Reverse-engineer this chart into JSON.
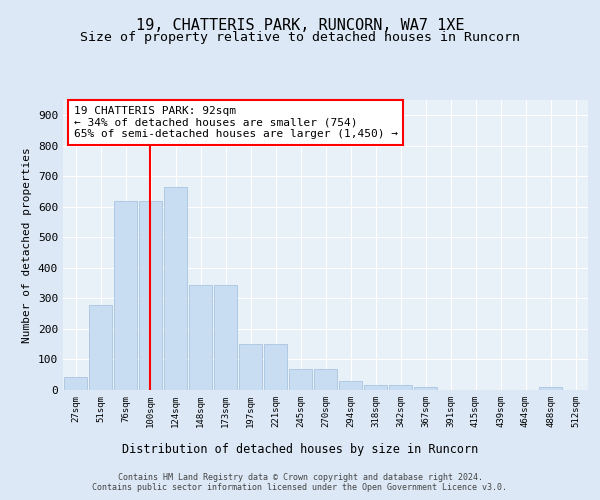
{
  "title1": "19, CHATTERIS PARK, RUNCORN, WA7 1XE",
  "title2": "Size of property relative to detached houses in Runcorn",
  "xlabel": "Distribution of detached houses by size in Runcorn",
  "ylabel": "Number of detached properties",
  "footer1": "Contains HM Land Registry data © Crown copyright and database right 2024.",
  "footer2": "Contains public sector information licensed under the Open Government Licence v3.0.",
  "bin_labels": [
    "27sqm",
    "51sqm",
    "76sqm",
    "100sqm",
    "124sqm",
    "148sqm",
    "173sqm",
    "197sqm",
    "221sqm",
    "245sqm",
    "270sqm",
    "294sqm",
    "318sqm",
    "342sqm",
    "367sqm",
    "391sqm",
    "415sqm",
    "439sqm",
    "464sqm",
    "488sqm",
    "512sqm"
  ],
  "bar_values": [
    42,
    280,
    620,
    620,
    665,
    345,
    345,
    150,
    150,
    68,
    68,
    28,
    15,
    15,
    10,
    0,
    0,
    0,
    0,
    10,
    0
  ],
  "bar_color": "#c9ddf2",
  "bar_edge_color": "#a0bedd",
  "vline_x": 2.97,
  "vline_color": "red",
  "annotation_text": "19 CHATTERIS PARK: 92sqm\n← 34% of detached houses are smaller (754)\n65% of semi-detached houses are larger (1,450) →",
  "annotation_box_color": "white",
  "annotation_box_edge_color": "red",
  "ylim": [
    0,
    950
  ],
  "yticks": [
    0,
    100,
    200,
    300,
    400,
    500,
    600,
    700,
    800,
    900
  ],
  "bg_color": "#dce8f5",
  "plot_bg_color": "#e8f0f8",
  "title1_fontsize": 11,
  "title2_fontsize": 9.5
}
